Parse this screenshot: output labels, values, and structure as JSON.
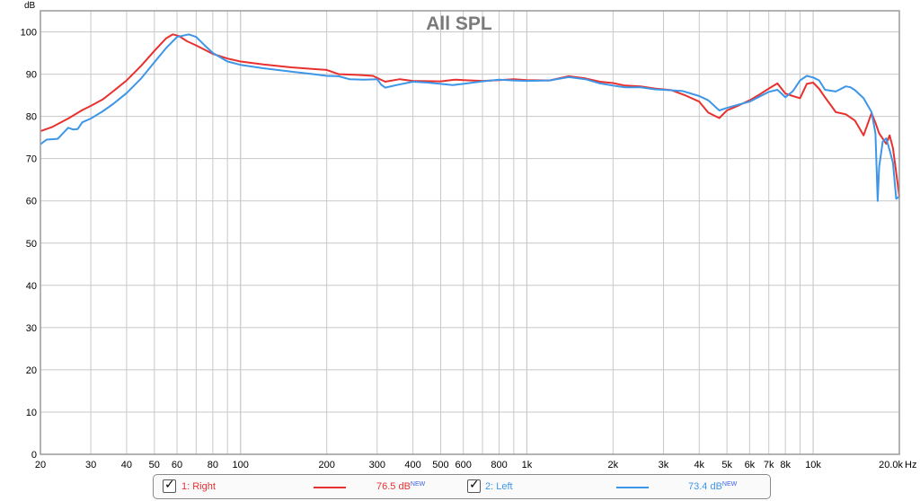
{
  "chart_data": {
    "type": "line",
    "title": "All SPL",
    "ylabel": "dB",
    "xunit": "Hz",
    "x_scale": "log",
    "xlim": [
      20,
      20000
    ],
    "ylim": [
      0,
      105
    ],
    "grid": true,
    "y_ticks": [
      0,
      10,
      20,
      30,
      40,
      50,
      60,
      70,
      80,
      90,
      100
    ],
    "x_ticks": [
      {
        "v": 20,
        "label": "20"
      },
      {
        "v": 30,
        "label": "30"
      },
      {
        "v": 40,
        "label": "40"
      },
      {
        "v": 50,
        "label": "50"
      },
      {
        "v": 60,
        "label": "60"
      },
      {
        "v": 80,
        "label": "80"
      },
      {
        "v": 100,
        "label": "100"
      },
      {
        "v": 200,
        "label": "200"
      },
      {
        "v": 300,
        "label": "300"
      },
      {
        "v": 400,
        "label": "400"
      },
      {
        "v": 500,
        "label": "500"
      },
      {
        "v": 600,
        "label": "600"
      },
      {
        "v": 800,
        "label": "800"
      },
      {
        "v": 1000,
        "label": "1k"
      },
      {
        "v": 2000,
        "label": "2k"
      },
      {
        "v": 3000,
        "label": "3k"
      },
      {
        "v": 4000,
        "label": "4k"
      },
      {
        "v": 5000,
        "label": "5k"
      },
      {
        "v": 6000,
        "label": "6k"
      },
      {
        "v": 7000,
        "label": "7k"
      },
      {
        "v": 8000,
        "label": "8k"
      },
      {
        "v": 10000,
        "label": "10k"
      },
      {
        "v": 20000,
        "label": "20.0k"
      }
    ],
    "series": [
      {
        "name": "1: Right",
        "color": "#e8312f",
        "legend_value": "76.5 dB",
        "points": [
          [
            20,
            76.5
          ],
          [
            22,
            77.5
          ],
          [
            25,
            79.5
          ],
          [
            28,
            81.5
          ],
          [
            30,
            82.5
          ],
          [
            33,
            84
          ],
          [
            36,
            86
          ],
          [
            40,
            88.5
          ],
          [
            45,
            92
          ],
          [
            50,
            95.5
          ],
          [
            55,
            98.5
          ],
          [
            58,
            99.4
          ],
          [
            61,
            99
          ],
          [
            65,
            97.8
          ],
          [
            70,
            96.8
          ],
          [
            80,
            94.8
          ],
          [
            90,
            93.7
          ],
          [
            100,
            93
          ],
          [
            120,
            92.3
          ],
          [
            150,
            91.6
          ],
          [
            180,
            91.2
          ],
          [
            200,
            91
          ],
          [
            220,
            90
          ],
          [
            260,
            89.8
          ],
          [
            290,
            89.6
          ],
          [
            320,
            88.2
          ],
          [
            360,
            88.8
          ],
          [
            400,
            88.4
          ],
          [
            500,
            88.3
          ],
          [
            560,
            88.7
          ],
          [
            600,
            88.6
          ],
          [
            700,
            88.4
          ],
          [
            800,
            88.6
          ],
          [
            900,
            88.8
          ],
          [
            1000,
            88.6
          ],
          [
            1200,
            88.5
          ],
          [
            1400,
            89.5
          ],
          [
            1600,
            89
          ],
          [
            1800,
            88.2
          ],
          [
            2000,
            87.9
          ],
          [
            2200,
            87.3
          ],
          [
            2500,
            87.1
          ],
          [
            2800,
            86.6
          ],
          [
            3200,
            86.2
          ],
          [
            3600,
            84.9
          ],
          [
            4000,
            83.5
          ],
          [
            4300,
            80.9
          ],
          [
            4700,
            79.6
          ],
          [
            5000,
            81.4
          ],
          [
            5500,
            82.6
          ],
          [
            6000,
            83.8
          ],
          [
            6500,
            85.2
          ],
          [
            7000,
            86.6
          ],
          [
            7500,
            87.8
          ],
          [
            8000,
            85.4
          ],
          [
            8500,
            84.8
          ],
          [
            9000,
            84.3
          ],
          [
            9500,
            87.7
          ],
          [
            10000,
            88
          ],
          [
            10500,
            86.5
          ],
          [
            11000,
            84.5
          ],
          [
            12000,
            81
          ],
          [
            13000,
            80.5
          ],
          [
            14000,
            79
          ],
          [
            15000,
            75.5
          ],
          [
            16000,
            80.8
          ],
          [
            16500,
            78.5
          ],
          [
            17000,
            76
          ],
          [
            18000,
            73.5
          ],
          [
            18500,
            75.5
          ],
          [
            19000,
            72.5
          ],
          [
            20000,
            61
          ]
        ]
      },
      {
        "name": "2: Left",
        "color": "#3d96e8",
        "legend_value": "73.4 dB",
        "points": [
          [
            20,
            73.4
          ],
          [
            21,
            74.5
          ],
          [
            23,
            74.7
          ],
          [
            25,
            77.3
          ],
          [
            26,
            76.9
          ],
          [
            27,
            77
          ],
          [
            28,
            78.6
          ],
          [
            30,
            79.5
          ],
          [
            33,
            81.2
          ],
          [
            36,
            83
          ],
          [
            40,
            85.5
          ],
          [
            45,
            89
          ],
          [
            50,
            92.8
          ],
          [
            55,
            96.2
          ],
          [
            60,
            98.8
          ],
          [
            66,
            99.4
          ],
          [
            70,
            98.8
          ],
          [
            75,
            96.8
          ],
          [
            80,
            95
          ],
          [
            90,
            93
          ],
          [
            100,
            92.2
          ],
          [
            120,
            91.4
          ],
          [
            150,
            90.6
          ],
          [
            180,
            90
          ],
          [
            200,
            89.6
          ],
          [
            220,
            89.5
          ],
          [
            240,
            88.8
          ],
          [
            270,
            88.7
          ],
          [
            300,
            88.8
          ],
          [
            310,
            87.5
          ],
          [
            320,
            86.8
          ],
          [
            350,
            87.4
          ],
          [
            400,
            88.2
          ],
          [
            450,
            88
          ],
          [
            500,
            87.7
          ],
          [
            550,
            87.4
          ],
          [
            600,
            87.7
          ],
          [
            700,
            88.3
          ],
          [
            800,
            88.7
          ],
          [
            900,
            88.5
          ],
          [
            1000,
            88.4
          ],
          [
            1200,
            88.5
          ],
          [
            1400,
            89.3
          ],
          [
            1600,
            88.8
          ],
          [
            1800,
            87.8
          ],
          [
            2000,
            87.3
          ],
          [
            2200,
            86.9
          ],
          [
            2500,
            86.9
          ],
          [
            2800,
            86.4
          ],
          [
            3000,
            86.3
          ],
          [
            3500,
            86
          ],
          [
            4000,
            84.8
          ],
          [
            4300,
            83.8
          ],
          [
            4700,
            81.4
          ],
          [
            5000,
            82
          ],
          [
            5500,
            82.8
          ],
          [
            6000,
            83.5
          ],
          [
            7000,
            85.8
          ],
          [
            7500,
            86.3
          ],
          [
            8000,
            84.5
          ],
          [
            8500,
            86
          ],
          [
            9000,
            88.5
          ],
          [
            9500,
            89.6
          ],
          [
            10000,
            89.2
          ],
          [
            10500,
            88.5
          ],
          [
            11000,
            86.3
          ],
          [
            12000,
            85.9
          ],
          [
            13000,
            87.1
          ],
          [
            13500,
            86.9
          ],
          [
            14000,
            86.2
          ],
          [
            15000,
            84.3
          ],
          [
            16000,
            81
          ],
          [
            16500,
            76
          ],
          [
            16800,
            60
          ],
          [
            17000,
            68
          ],
          [
            17500,
            74
          ],
          [
            18000,
            74.8
          ],
          [
            18500,
            72
          ],
          [
            19000,
            69
          ],
          [
            19500,
            60.5
          ],
          [
            20000,
            61
          ]
        ]
      }
    ]
  },
  "legend": {
    "items": [
      {
        "label": "1: Right",
        "value": "76.5 dB",
        "badge": "NEW",
        "checked": true,
        "check_glyph": "✓"
      },
      {
        "label": "2: Left",
        "value": "73.4 dB",
        "badge": "NEW",
        "checked": true,
        "check_glyph": "✓"
      }
    ]
  }
}
